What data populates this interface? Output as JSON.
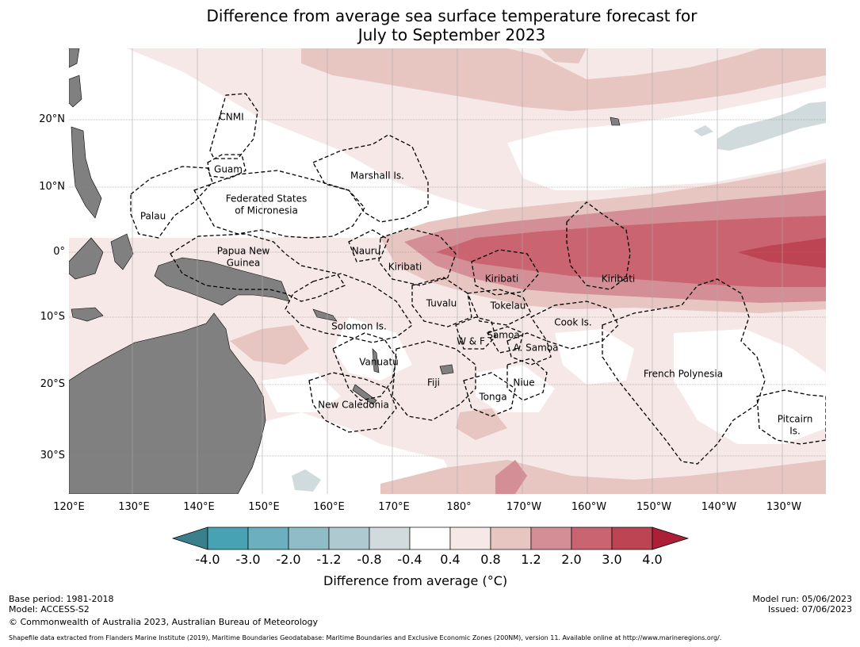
{
  "title": {
    "line1": "Difference from average sea surface temperature forecast for",
    "line2": "July to September 2023"
  },
  "axes": {
    "lat_labels": [
      "20°N",
      "10°N",
      "0°",
      "10°S",
      "20°S",
      "30°S"
    ],
    "lon_labels": [
      "120°E",
      "130°E",
      "140°E",
      "150°E",
      "160°E",
      "170°E",
      "180°",
      "170°W",
      "160°W",
      "150°W",
      "140°W",
      "130°W"
    ]
  },
  "regions": [
    "CNMI",
    "Guam",
    "Marshall Is.",
    "Federated States",
    "of Micronesia",
    "Palau",
    "Nauru",
    "Papua New",
    "Guinea",
    "Kiribati",
    "Kiribati",
    "Kiribati",
    "Tuvalu",
    "Tokelau",
    "Cook Is.",
    "Solomon Is.",
    "W & F",
    "Samoa",
    "A. Samoa",
    "Vanuatu",
    "Fiji",
    "Niue",
    "French Polynesia",
    "Tonga",
    "New Caledonia",
    "Pitcairn",
    "Is."
  ],
  "colorbar": {
    "title": "Difference from average (°C)",
    "ticks": [
      "-4.0",
      "-3.0",
      "-2.0",
      "-1.2",
      "-0.8",
      "-0.4",
      "0.4",
      "0.8",
      "1.2",
      "2.0",
      "3.0",
      "4.0"
    ],
    "colors": [
      "#3a7f8c",
      "#47a3b3",
      "#6cb0bf",
      "#8fbcc6",
      "#aec9cf",
      "#d1dbdd",
      "#ffffff",
      "#f5e8e6",
      "#e7c5c1",
      "#d48f96",
      "#c96470",
      "#bd4453",
      "#ab1f37"
    ]
  },
  "footer": {
    "left": [
      "Base period: 1981-2018",
      "Model: ACCESS-S2",
      "© Commonwealth of Australia 2023, Australian Bureau of Meteorology"
    ],
    "right": [
      "Model run: 05/06/2023",
      "Issued: 07/06/2023"
    ],
    "note": "Shapefile data extracted from Flanders Marine Institute (2019), Maritime Boundaries Geodatabase: Maritime Boundaries and Exclusive Economic Zones (200NM), version 11. Available online at http://www.marineregions.org/."
  },
  "colors": {
    "land": "#808080",
    "weak_warm": "#f5e8e6",
    "mild_warm": "#e7c5c1",
    "moderate_warm": "#d48f96",
    "strong_warm": "#c96470",
    "very_strong_warm": "#bd4453",
    "slight_cool": "#d1dbdd"
  }
}
